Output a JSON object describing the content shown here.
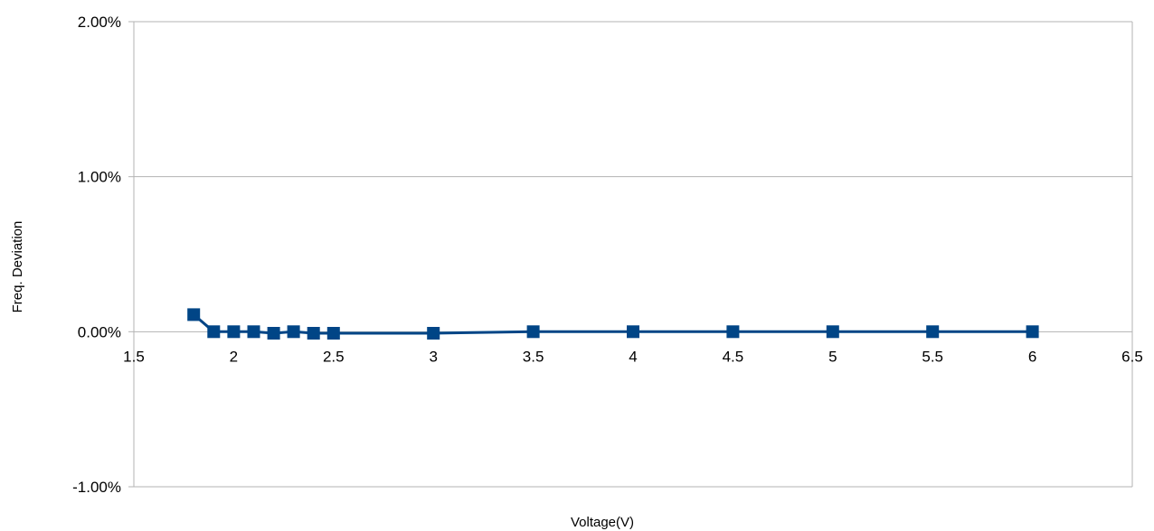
{
  "chart_data": {
    "type": "scatter",
    "title": "",
    "xlabel": "Voltage(V)",
    "ylabel": "Freq. Deviation",
    "xlim": [
      1.5,
      6.5
    ],
    "ylim": [
      -1.0,
      2.0
    ],
    "x_ticks": [
      1.5,
      2,
      2.5,
      3,
      3.5,
      4,
      4.5,
      5,
      5.5,
      6,
      6.5
    ],
    "x_tick_labels": [
      "1.5",
      "2",
      "2.5",
      "3",
      "3.5",
      "4",
      "4.5",
      "5",
      "5.5",
      "6",
      "6.5"
    ],
    "y_ticks": [
      2.0,
      1.0,
      0.0,
      -1.0
    ],
    "y_tick_labels": [
      "2.00%",
      "1.00%",
      "0.00%",
      "-1.00%"
    ],
    "y_unit": "%",
    "grid": "horizontal",
    "legend": "none",
    "line_style": "lines-and-markers",
    "marker": "square",
    "series_color": "#004586",
    "series": [
      {
        "x": [
          1.8,
          1.9,
          2.0,
          2.1,
          2.2,
          2.3,
          2.4,
          2.5,
          3.0,
          3.5,
          4.0,
          4.5,
          5.0,
          5.5,
          6.0
        ],
        "y": [
          0.11,
          0.0,
          0.0,
          0.0,
          -0.01,
          0.0,
          -0.01,
          -0.01,
          -0.01,
          0.0,
          0.0,
          0.0,
          0.0,
          0.0,
          0.0
        ]
      }
    ]
  }
}
